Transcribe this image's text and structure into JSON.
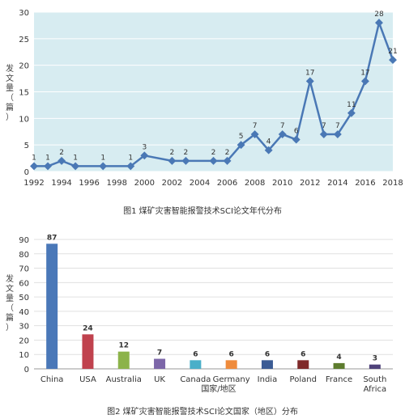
{
  "chart_data": [
    {
      "type": "line",
      "title": "",
      "xlabel": "",
      "ylabel": "发文量（篇）",
      "caption": "图1 煤矿灾害智能报警技术SCI论文年代分布",
      "x": [
        1992,
        1993,
        1994,
        1995,
        1997,
        1999,
        2000,
        2002,
        2003,
        2005,
        2006,
        2007,
        2008,
        2009,
        2010,
        2011,
        2012,
        2013,
        2014,
        2015,
        2016,
        2017,
        2018
      ],
      "series": [
        {
          "values": [
            1,
            1,
            2,
            1,
            1,
            1,
            3,
            2,
            2,
            2,
            2,
            5,
            7,
            4,
            7,
            6,
            17,
            7,
            7,
            11,
            17,
            28,
            21
          ]
        }
      ],
      "xticks": [
        1992,
        1994,
        1996,
        1998,
        2000,
        2002,
        2004,
        2006,
        2008,
        2010,
        2012,
        2014,
        2016,
        2018
      ],
      "yticks": [
        0,
        5,
        10,
        15,
        20,
        25,
        30
      ],
      "xlim": [
        1992,
        2018
      ],
      "ylim": [
        0,
        30
      ],
      "grid": true,
      "colors": {
        "line": "#4a78b5",
        "plot_bg": "#d7ecf1"
      }
    },
    {
      "type": "bar",
      "title": "",
      "xlabel": "国家/地区",
      "ylabel": "发文量（篇）",
      "caption": "图2 煤矿灾害智能报警技术SCI论文国家（地区）分布",
      "categories": [
        "China",
        "USA",
        "Australia",
        "UK",
        "Canada",
        "Germany",
        "India",
        "Poland",
        "France",
        "South Africa"
      ],
      "values": [
        87,
        24,
        12,
        7,
        6,
        6,
        6,
        6,
        4,
        3
      ],
      "colors": [
        "#4a78b8",
        "#c0424e",
        "#8cb34a",
        "#7c66a8",
        "#4aafc9",
        "#ef8b3c",
        "#3b5b94",
        "#7f2a2a",
        "#5d7c2e",
        "#4f427a"
      ],
      "yticks": [
        0,
        10,
        20,
        30,
        40,
        50,
        60,
        70,
        80,
        90
      ],
      "ylim": [
        0,
        90
      ],
      "grid": true
    }
  ]
}
